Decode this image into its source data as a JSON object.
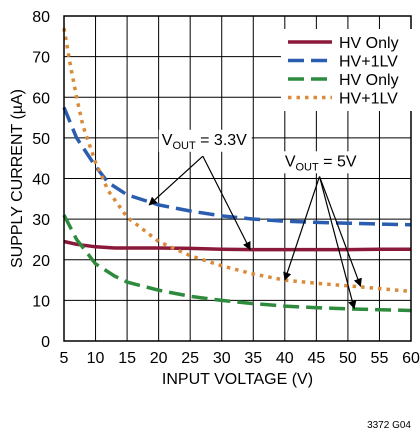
{
  "chart_data": {
    "type": "line",
    "xlabel": "INPUT VOLTAGE (V)",
    "ylabel": "SUPPLY CURRENT (µA)",
    "xlim": [
      5,
      60
    ],
    "ylim": [
      0,
      80
    ],
    "x_ticks": [
      "5",
      "10",
      "15",
      "20",
      "25",
      "30",
      "35",
      "40",
      "45",
      "50",
      "55",
      "60"
    ],
    "y_ticks": [
      "0",
      "10",
      "20",
      "30",
      "40",
      "50",
      "60",
      "70",
      "80"
    ],
    "grid": true,
    "legend_position": "top-right",
    "series": [
      {
        "name": "HV Only",
        "color": "#8b1a3a",
        "style": "solid",
        "x": [
          5,
          7,
          10,
          13,
          15,
          20,
          25,
          30,
          35,
          40,
          45,
          50,
          55,
          60
        ],
        "y": [
          24.5,
          23.8,
          23.2,
          22.9,
          22.9,
          22.9,
          22.8,
          22.6,
          22.5,
          22.5,
          22.5,
          22.5,
          22.6,
          22.6
        ]
      },
      {
        "name": "HV+1LV",
        "color": "#2a5db0",
        "style": "dash",
        "x": [
          5,
          7,
          10,
          12,
          15,
          20,
          25,
          30,
          35,
          40,
          45,
          50,
          55,
          60
        ],
        "y": [
          57.5,
          50,
          43,
          39,
          36,
          33.5,
          32,
          30.8,
          30,
          29.5,
          29.2,
          29,
          28.8,
          28.6
        ]
      },
      {
        "name": "HV Only",
        "color": "#2e8b3e",
        "style": "dash",
        "x": [
          5,
          7,
          10,
          13,
          15,
          20,
          25,
          30,
          35,
          40,
          45,
          50,
          55,
          60
        ],
        "y": [
          31,
          25,
          19,
          16,
          14.5,
          12.5,
          11,
          10,
          9.2,
          8.6,
          8.2,
          7.9,
          7.7,
          7.5
        ]
      },
      {
        "name": "HV+1LV",
        "color": "#d98a3a",
        "style": "dot",
        "x": [
          5,
          6,
          7,
          8,
          10,
          12,
          15,
          20,
          25,
          30,
          35,
          40,
          45,
          50,
          55,
          60
        ],
        "y": [
          77,
          68,
          60,
          53,
          44,
          37,
          30.5,
          24.5,
          21,
          18.5,
          16.5,
          15,
          14.2,
          13.6,
          12.9,
          12.2
        ]
      }
    ],
    "annotations": [
      {
        "text": "VOUT = 3.3V",
        "main": "V",
        "sub": "OUT",
        "rest": " = 3.3V",
        "label_at": [
          20.5,
          48.3
        ],
        "arrow_from": [
          27,
          45.5
        ],
        "arrow_to": [
          [
            18.5,
            33.5
          ],
          [
            34.5,
            22.5
          ]
        ]
      },
      {
        "text": "VOUT = 5V",
        "main": "V",
        "sub": "OUT",
        "rest": " = 5V",
        "label_at": [
          40,
          43
        ],
        "arrow_from": [
          45.5,
          40.5
        ],
        "arrow_to": [
          [
            40,
            15
          ],
          [
            51,
            8
          ],
          [
            52,
            13.5
          ]
        ]
      }
    ],
    "figure_id": "3372 G04"
  }
}
